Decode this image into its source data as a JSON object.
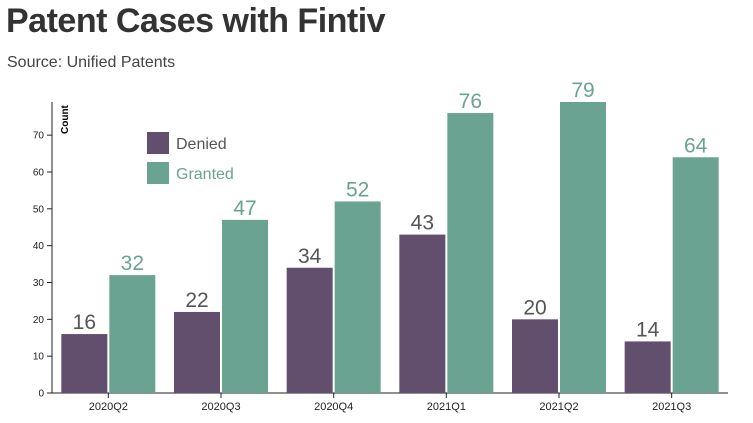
{
  "title": "Patent Cases with Fintiv",
  "subtitle": "Source: Unified Patents",
  "chart_data": {
    "type": "bar",
    "categories": [
      "2020Q2",
      "2020Q3",
      "2020Q4",
      "2021Q1",
      "2021Q2",
      "2021Q3"
    ],
    "series": [
      {
        "name": "Denied",
        "values": [
          16,
          22,
          34,
          43,
          20,
          14
        ],
        "color": "#624e6d"
      },
      {
        "name": "Granted",
        "values": [
          32,
          47,
          52,
          76,
          79,
          64
        ],
        "color": "#6aa392"
      }
    ],
    "ylabel": "Count",
    "xlabel": "",
    "ylim": [
      0,
      79
    ],
    "yticks": [
      0,
      10,
      20,
      30,
      40,
      50,
      60,
      70
    ],
    "grid": false,
    "legend": "top-left",
    "data_labels": true
  }
}
